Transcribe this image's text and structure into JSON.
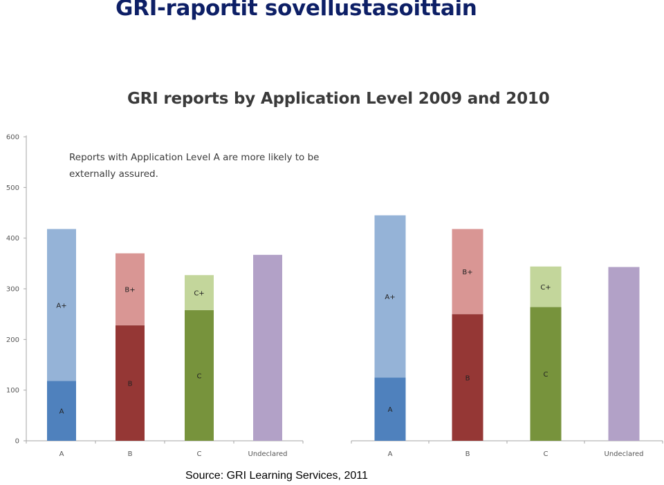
{
  "slide": {
    "title": "GRI-raportit sovellustasoittain",
    "source": "Source: GRI Learning Services, 2011"
  },
  "chart_data": {
    "type": "bar",
    "stacked": true,
    "title": "GRI reports by Application Level 2009 and 2010",
    "annotation": [
      "Reports with Application Level A are more likely to be",
      "externally assured."
    ],
    "ylim": [
      0,
      600
    ],
    "yticks": [
      0,
      100,
      200,
      300,
      400,
      500,
      600
    ],
    "grid": false,
    "legend": "none",
    "panels": [
      {
        "categories": [
          "A",
          "B",
          "C",
          "Undeclared"
        ],
        "series": [
          {
            "name": "A",
            "category": "A",
            "value": 118,
            "color": "#4f81bd"
          },
          {
            "name": "A+",
            "category": "A",
            "value": 300,
            "color": "#95b3d7"
          },
          {
            "name": "B",
            "category": "B",
            "value": 228,
            "color": "#953735"
          },
          {
            "name": "B+",
            "category": "B",
            "value": 142,
            "color": "#d99694"
          },
          {
            "name": "C",
            "category": "C",
            "value": 258,
            "color": "#77933c"
          },
          {
            "name": "C+",
            "category": "C",
            "value": 69,
            "color": "#c3d69b"
          },
          {
            "name": "",
            "category": "Undeclared",
            "value": 367,
            "color": "#b2a1c7"
          }
        ]
      },
      {
        "categories": [
          "A",
          "B",
          "C",
          "Undeclared"
        ],
        "series": [
          {
            "name": "A",
            "category": "A",
            "value": 125,
            "color": "#4f81bd"
          },
          {
            "name": "A+",
            "category": "A",
            "value": 320,
            "color": "#95b3d7"
          },
          {
            "name": "B",
            "category": "B",
            "value": 250,
            "color": "#953735"
          },
          {
            "name": "B+",
            "category": "B",
            "value": 168,
            "color": "#d99694"
          },
          {
            "name": "C",
            "category": "C",
            "value": 264,
            "color": "#77933c"
          },
          {
            "name": "C+",
            "category": "C",
            "value": 80,
            "color": "#c3d69b"
          },
          {
            "name": "",
            "category": "Undeclared",
            "value": 343,
            "color": "#b2a1c7"
          }
        ]
      }
    ]
  }
}
